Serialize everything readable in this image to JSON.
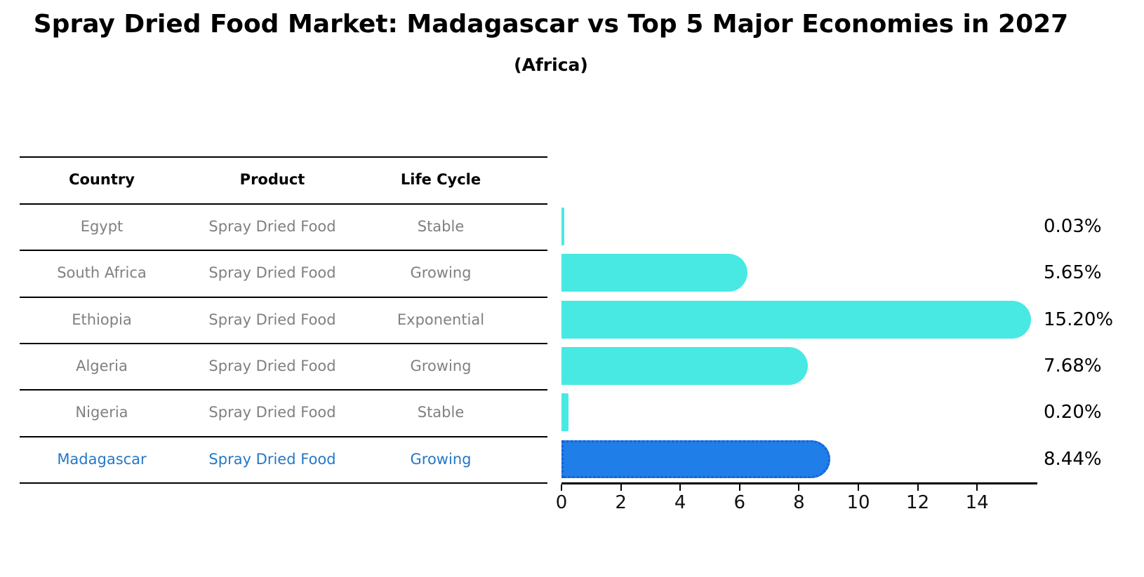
{
  "title": "Spray Dried Food Market: Madagascar vs Top 5 Major Economies in 2027",
  "subtitle": "(Africa)",
  "table": {
    "headers": [
      "Country",
      "Product",
      "Life Cycle"
    ],
    "rows": [
      {
        "country": "Egypt",
        "product": "Spray Dried Food",
        "life_cycle": "Stable",
        "highlight": false
      },
      {
        "country": "South Africa",
        "product": "Spray Dried Food",
        "life_cycle": "Growing",
        "highlight": false
      },
      {
        "country": "Ethiopia",
        "product": "Spray Dried Food",
        "life_cycle": "Exponential",
        "highlight": false
      },
      {
        "country": "Algeria",
        "product": "Spray Dried Food",
        "life_cycle": "Growing",
        "highlight": false
      },
      {
        "country": "Nigeria",
        "product": "Spray Dried Food",
        "life_cycle": "Stable",
        "highlight": false
      },
      {
        "country": "Madagascar",
        "product": "Spray Dried Food",
        "life_cycle": "Growing",
        "highlight": true
      }
    ]
  },
  "chart_data": {
    "type": "bar",
    "orientation": "horizontal",
    "title": "Spray Dried Food Market: Madagascar vs Top 5 Major Economies in 2027 (Africa)",
    "categories": [
      "Egypt",
      "South Africa",
      "Ethiopia",
      "Algeria",
      "Nigeria",
      "Madagascar"
    ],
    "values": [
      0.03,
      5.65,
      15.2,
      7.68,
      0.2,
      8.44
    ],
    "value_labels": [
      "0.03%",
      "5.65%",
      "15.20%",
      "7.68%",
      "0.20%",
      "8.44%"
    ],
    "x_ticks": [
      0,
      2,
      4,
      6,
      8,
      10,
      12,
      14
    ],
    "xlim": [
      0,
      16
    ],
    "xlabel": "",
    "ylabel": "",
    "grid": false,
    "legend": false,
    "highlight_index": 5
  },
  "colors": {
    "bar_color": "#48E9E2",
    "highlight_bar_color": "#1F7EE8",
    "highlight_bar_border": "#1560D8",
    "row_text": "#808080",
    "highlight_text": "#2478C8",
    "header_text": "#000000",
    "line": "#000000",
    "background": "#FFFFFF"
  }
}
